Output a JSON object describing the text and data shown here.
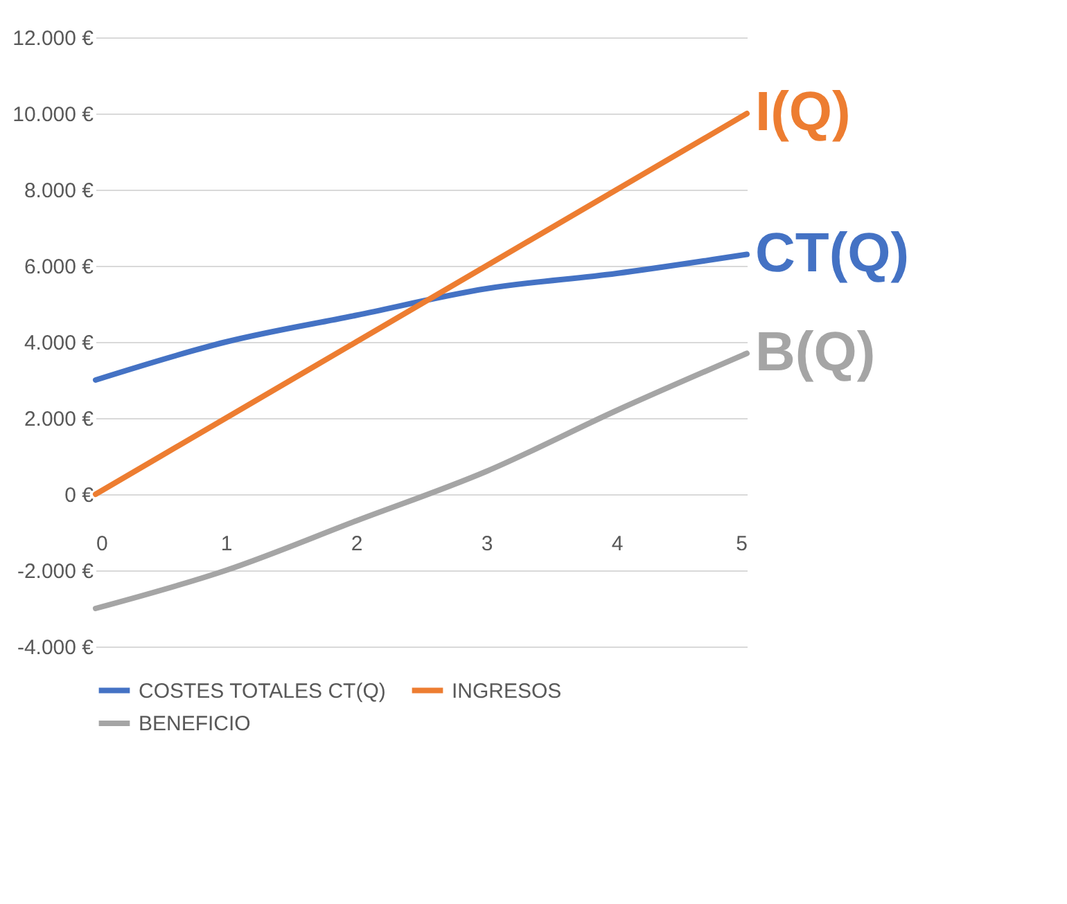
{
  "chart_data": {
    "type": "line",
    "x": [
      0,
      1,
      2,
      3,
      4,
      5
    ],
    "xlim": [
      0,
      5
    ],
    "xticks": [
      0,
      1,
      2,
      3,
      4,
      5
    ],
    "ylim": [
      -4000,
      12000
    ],
    "yticks": [
      {
        "value": -4000,
        "label": "-4.000 €"
      },
      {
        "value": -2000,
        "label": "-2.000 €"
      },
      {
        "value": 0,
        "label": "0 €"
      },
      {
        "value": 2000,
        "label": "2.000 €"
      },
      {
        "value": 4000,
        "label": "4.000 €"
      },
      {
        "value": 6000,
        "label": "6.000 €"
      },
      {
        "value": 8000,
        "label": "8.000 €"
      },
      {
        "value": 10000,
        "label": "10.000 €"
      },
      {
        "value": 12000,
        "label": "12.000 €"
      }
    ],
    "series": [
      {
        "name": "COSTES TOTALES CT(Q)",
        "color": "#4472c4",
        "values": [
          3000,
          4000,
          4700,
          5400,
          5800,
          6300
        ]
      },
      {
        "name": "INGRESOS",
        "color": "#ed7d31",
        "values": [
          0,
          2000,
          4000,
          6000,
          8000,
          10000
        ]
      },
      {
        "name": "BENEFICIO",
        "color": "#a5a5a5",
        "values": [
          -3000,
          -2000,
          -700,
          600,
          2200,
          3700
        ]
      }
    ],
    "annotations": [
      "CT(Q)",
      "I(Q)",
      "B(Q)"
    ],
    "grid": "y",
    "legend": "bottom",
    "marker": "none",
    "line_style": "solid"
  }
}
